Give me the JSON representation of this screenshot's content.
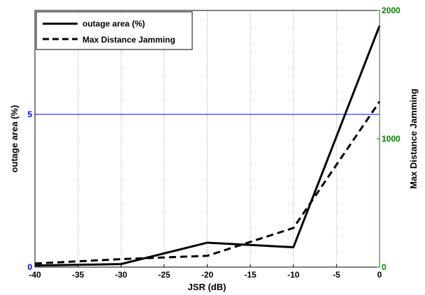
{
  "chart_data": {
    "type": "line",
    "x": [
      -40,
      -30,
      -20,
      -10,
      0
    ],
    "xlabel": "JSR (dB)",
    "xlim": [
      -40,
      0
    ],
    "xticks": [
      -40,
      -35,
      -30,
      -25,
      -20,
      -15,
      -10,
      -5,
      0
    ],
    "y_left": {
      "label": "outage area (%)",
      "lim": [
        0,
        8.4
      ],
      "ticks": [
        0,
        5
      ],
      "color": "#0000ff",
      "gridline": 5
    },
    "y_right": {
      "label": "Max Distance Jamming",
      "lim": [
        0,
        2000
      ],
      "ticks": [
        0,
        1000,
        2000
      ],
      "color": "#008000"
    },
    "series": [
      {
        "name": "outage area (%)",
        "axis": "left",
        "style": "solid",
        "color": "#000000",
        "values": [
          0.05,
          0.1,
          0.8,
          0.65,
          7.9
        ]
      },
      {
        "name": "Max Distance Jamming",
        "axis": "right",
        "style": "dashed",
        "color": "#000000",
        "values": [
          28,
          62,
          88,
          305,
          1290
        ]
      }
    ],
    "grid": {
      "x": true,
      "y_left_at": [
        5
      ]
    },
    "legend": "top-left"
  }
}
